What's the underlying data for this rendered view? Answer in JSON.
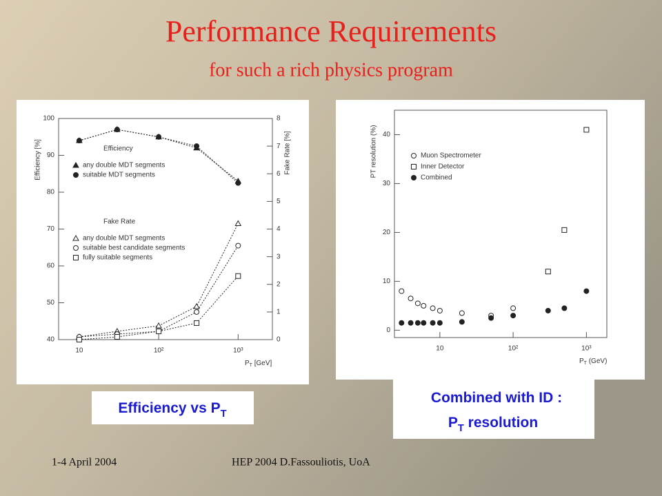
{
  "title": "Performance Requirements",
  "subtitle": "for such a rich physics program",
  "captions": [
    [
      "Efficiency vs P",
      "T"
    ],
    [
      "Combined with ID :"
    ],
    [
      "P",
      "T",
      " resolution"
    ]
  ],
  "footer": {
    "date": "1-4 April 2004",
    "author": "HEP 2004 D.Fassouliotis, UoA"
  },
  "chart_data": [
    {
      "type": "scatter",
      "lines": true,
      "log_x": true,
      "xlabel": [
        "P",
        "T",
        " [GeV]"
      ],
      "ylabel": "Efficiency [%]",
      "y2label": "Fake Rate [%]",
      "xlim": [
        5.5,
        2700
      ],
      "xticks": [
        10,
        {
          "value": 100,
          "label": "10²"
        },
        {
          "value": 1000,
          "label": "10³"
        }
      ],
      "ylim": [
        40,
        100
      ],
      "yticks": [
        40,
        50,
        60,
        70,
        80,
        90,
        100
      ],
      "y2lim": [
        0,
        8
      ],
      "y2ticks": [
        0,
        1,
        2,
        3,
        4,
        5,
        6,
        7,
        8
      ],
      "legend_titles": [
        "Efficiency",
        "Fake Rate"
      ],
      "x": [
        10,
        30,
        100,
        300,
        1000
      ],
      "series": [
        {
          "name": "any double MDT segments",
          "marker": "triangle",
          "color": "#222",
          "values": [
            94,
            97,
            95,
            92,
            83
          ]
        },
        {
          "name": "suitable MDT segments",
          "marker": "circle",
          "color": "#222",
          "values": [
            94,
            97,
            95,
            92.5,
            82.5
          ]
        },
        {
          "name": "any double MDT segments",
          "marker": "triangle-open",
          "color": "#222",
          "axis": "y2",
          "values": [
            0.1,
            0.3,
            0.5,
            1.2,
            4.2
          ]
        },
        {
          "name": "suitable best candidate segments",
          "marker": "circle-open",
          "color": "#222",
          "axis": "y2",
          "values": [
            0.1,
            0.2,
            0.3,
            1.0,
            3.4
          ]
        },
        {
          "name": "fully suitable segments",
          "marker": "square-open",
          "color": "#222",
          "axis": "y2",
          "values": [
            0.0,
            0.1,
            0.3,
            0.6,
            2.3
          ]
        }
      ]
    },
    {
      "type": "scatter",
      "lines": false,
      "log_x": true,
      "xlabel": [
        "P",
        "T",
        " (GeV)"
      ],
      "ylabel": "PT resolution (%)",
      "xlim": [
        2.4,
        1900
      ],
      "xticks": [
        10,
        {
          "value": 100,
          "label": "10²"
        },
        {
          "value": 1000,
          "label": "10³"
        }
      ],
      "ylim": [
        -1.5,
        45
      ],
      "yticks": [
        0,
        10,
        20,
        30,
        40
      ],
      "series": [
        {
          "name": "Muon Spectrometer",
          "marker": "circle-open",
          "color": "#222",
          "x": [
            3,
            4,
            5,
            6,
            8,
            10,
            20,
            50,
            100
          ],
          "values": [
            8,
            6.5,
            5.5,
            5,
            4.5,
            4,
            3.5,
            3,
            4.5
          ]
        },
        {
          "name": "Inner Detector",
          "marker": "square-open",
          "color": "#222",
          "x": [
            300,
            500,
            1000
          ],
          "values": [
            12,
            20.5,
            41
          ]
        },
        {
          "name": "Combined",
          "marker": "circle",
          "color": "#222",
          "x": [
            3,
            4,
            5,
            6,
            8,
            10,
            20,
            50,
            100,
            300,
            500,
            1000
          ],
          "values": [
            1.5,
            1.5,
            1.5,
            1.5,
            1.5,
            1.5,
            1.7,
            2.5,
            3,
            4,
            4.5,
            8
          ]
        }
      ]
    }
  ]
}
